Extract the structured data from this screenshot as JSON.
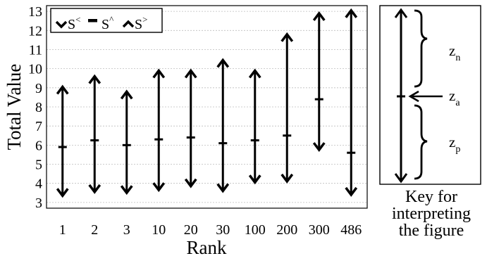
{
  "chart_data": {
    "type": "range",
    "categories": [
      "1",
      "2",
      "3",
      "10",
      "20",
      "30",
      "100",
      "200",
      "300",
      "486"
    ],
    "series": [
      {
        "name": "S<",
        "values": [
          3.35,
          3.55,
          3.5,
          3.65,
          3.85,
          3.6,
          4.05,
          4.1,
          5.75,
          3.4
        ]
      },
      {
        "name": "S^",
        "values": [
          5.9,
          6.25,
          6.0,
          6.3,
          6.4,
          6.1,
          6.25,
          6.5,
          8.4,
          5.6
        ]
      },
      {
        "name": "S>",
        "values": [
          9.05,
          9.6,
          8.8,
          9.9,
          9.9,
          10.45,
          9.9,
          11.8,
          12.9,
          13.05
        ]
      }
    ],
    "xlabel": "Rank",
    "ylabel": "Total Value",
    "ylim": [
      2.7,
      13.3
    ],
    "yticks": [
      3,
      4,
      5,
      6,
      7,
      8,
      9,
      10,
      11,
      12,
      13
    ],
    "grid": true,
    "legend_position": "top-left"
  },
  "legend": {
    "items": [
      {
        "label": "S",
        "sup": "<"
      },
      {
        "label": "S",
        "sup": "^"
      },
      {
        "label": "S",
        "sup": ">"
      }
    ]
  },
  "key": {
    "labels": [
      {
        "main": "z",
        "sub": "n"
      },
      {
        "main": "z",
        "sub": "a"
      },
      {
        "main": "z",
        "sub": "p"
      }
    ],
    "caption": [
      "Key for",
      "interpreting",
      "the figure"
    ]
  }
}
